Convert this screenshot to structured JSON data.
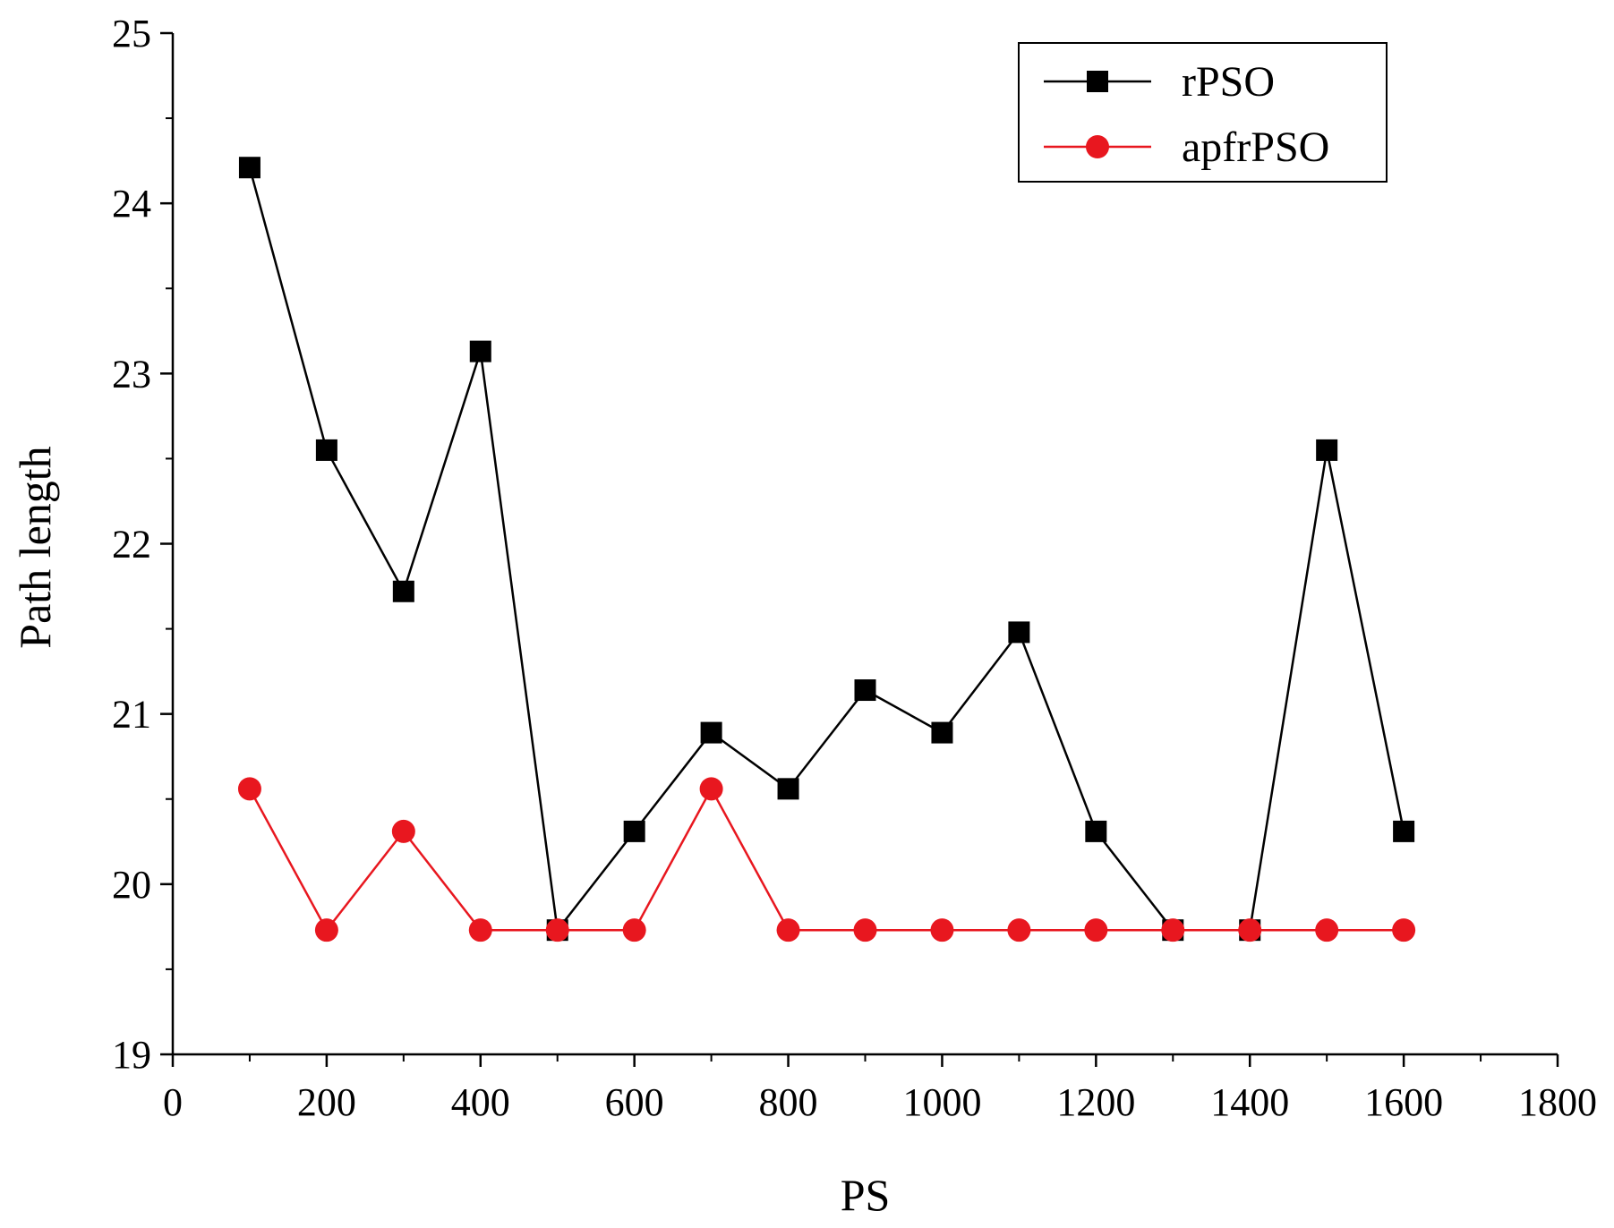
{
  "chart_data": {
    "type": "line",
    "title": "",
    "xlabel": "PS",
    "ylabel": "Path length",
    "xlim": [
      0,
      1800
    ],
    "ylim": [
      19,
      25
    ],
    "xticks": [
      0,
      200,
      400,
      600,
      800,
      1000,
      1200,
      1400,
      1600,
      1800
    ],
    "xtick_labels": [
      "0",
      "200",
      "400",
      "600",
      "800",
      "1000",
      "1200",
      "1400",
      "1600",
      "1800"
    ],
    "yticks": [
      19,
      20,
      21,
      22,
      23,
      24,
      25
    ],
    "ytick_labels": [
      "19",
      "20",
      "21",
      "22",
      "23",
      "24",
      "25"
    ],
    "x": [
      100,
      200,
      300,
      400,
      500,
      600,
      700,
      800,
      900,
      1000,
      1100,
      1200,
      1300,
      1400,
      1500,
      1600
    ],
    "series": [
      {
        "name": "rPSO",
        "color": "#000000",
        "marker": "square",
        "values": [
          24.21,
          22.55,
          21.72,
          23.13,
          19.73,
          20.31,
          20.89,
          20.56,
          21.14,
          20.89,
          21.48,
          20.31,
          19.73,
          19.73,
          22.55,
          20.31
        ]
      },
      {
        "name": "apfrPSO",
        "color": "#e8171f",
        "marker": "circle",
        "values": [
          20.56,
          19.73,
          20.31,
          19.73,
          19.73,
          19.73,
          20.56,
          19.73,
          19.73,
          19.73,
          19.73,
          19.73,
          19.73,
          19.73,
          19.73,
          19.73
        ]
      }
    ],
    "legend": {
      "position": "top-right",
      "frame": true
    },
    "grid": false
  }
}
